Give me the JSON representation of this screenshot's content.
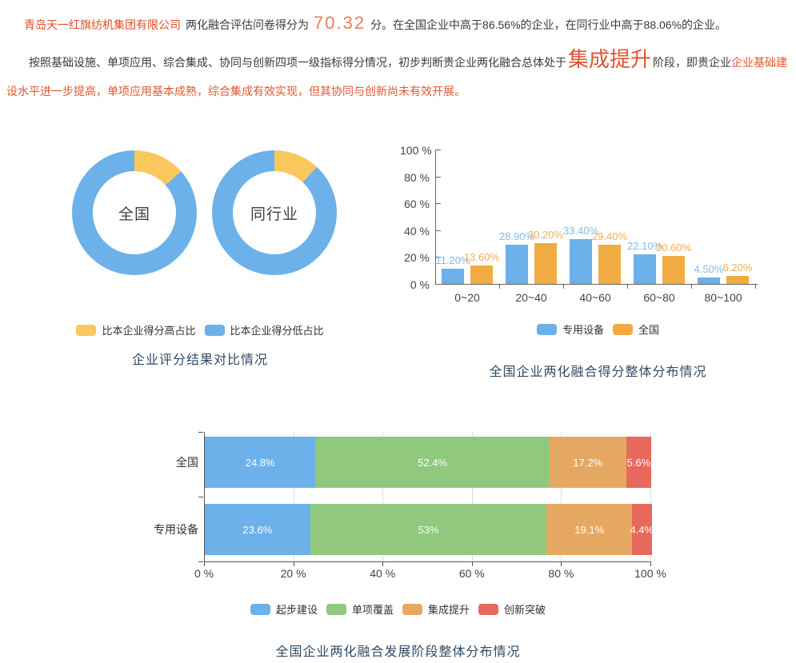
{
  "colors": {
    "blue": "#6cb1e9",
    "yellow": "#f9c75b",
    "orange": "#f0ac43",
    "green": "#90c87d",
    "sandy": "#e5a862",
    "red": "#e7695c",
    "title_navy": "#2f4a63",
    "axis": "#666666",
    "grid": "#dddddd"
  },
  "header": {
    "company": "青岛天一红旗纺机集团有限公司",
    "score_prefix": "两化融合评估问卷得分为",
    "score": "70.32",
    "score_suffix": "分。在全国企业中高于86.56%的企业，在同行业中高于88.06%的企业。",
    "assessment_black_1": "按照基础设施、单项应用、综合集成、协同与创新四项一级指标得分情况，初步判断贵企业两化融合总体处于",
    "stage_highlight": "集成提升",
    "assessment_black_2": "阶段，即贵企业",
    "assessment_red": "企业基础建设水平进一步提高，单项应用基本成熟，综合集成有效实现，但其协同与创新尚未有效开展。"
  },
  "chart_data": [
    {
      "type": "pie",
      "variant": "double-donut",
      "title": "企业评分结果对比情况",
      "legend": [
        {
          "label": "比本企业得分高占比",
          "color": "#f9c75b"
        },
        {
          "label": "比本企业得分低占比",
          "color": "#6cb1e9"
        }
      ],
      "donuts": [
        {
          "label": "全国",
          "slices": [
            {
              "name": "比本企业得分高占比",
              "value": 13.44,
              "color": "#f9c75b"
            },
            {
              "name": "比本企业得分低占比",
              "value": 86.56,
              "color": "#6cb1e9"
            }
          ]
        },
        {
          "label": "同行业",
          "slices": [
            {
              "name": "比本企业得分高占比",
              "value": 11.94,
              "color": "#f9c75b"
            },
            {
              "name": "比本企业得分低占比",
              "value": 88.06,
              "color": "#6cb1e9"
            }
          ]
        }
      ]
    },
    {
      "type": "bar",
      "title": "全国企业两化融合得分整体分布情况",
      "categories": [
        "0~20",
        "20~40",
        "40~60",
        "60~80",
        "80~100"
      ],
      "series": [
        {
          "name": "专用设备",
          "color": "#6cb1e9",
          "label_color": "#86b9e8",
          "values": [
            11.2,
            28.9,
            33.4,
            22.1,
            4.5
          ],
          "labels": [
            "11.20%",
            "28.90%",
            "33.40%",
            "22.10%",
            "4.50%"
          ]
        },
        {
          "name": "全国",
          "color": "#f0ac43",
          "label_color": "#f0ad52",
          "values": [
            13.6,
            30.2,
            29.4,
            20.6,
            6.2
          ],
          "labels": [
            "13.60%",
            "30.20%",
            "29.40%",
            "20.60%",
            "6.20%"
          ]
        }
      ],
      "ylim": [
        0,
        100
      ],
      "ytick_values": [
        0,
        20,
        40,
        60,
        80,
        100
      ],
      "ytick_labels": [
        "0 %",
        "20 %",
        "40 %",
        "60 %",
        "80 %",
        "100 %"
      ],
      "grid": false,
      "legend_position": "bottom"
    },
    {
      "type": "bar",
      "variant": "horizontal-stacked",
      "title": "全国企业两化融合发展阶段整体分布情况",
      "categories": [
        "全国",
        "专用设备"
      ],
      "series": [
        {
          "name": "起步建设",
          "color": "#6cb1e9",
          "values": [
            24.8,
            23.6
          ]
        },
        {
          "name": "单项覆盖",
          "color": "#90c87d",
          "values": [
            52.4,
            53
          ]
        },
        {
          "name": "集成提升",
          "color": "#e5a862",
          "values": [
            17.2,
            19.1
          ]
        },
        {
          "name": "创新突破",
          "color": "#e7695c",
          "values": [
            5.6,
            4.4
          ]
        }
      ],
      "segment_labels": [
        [
          "24.8%",
          "52.4%",
          "17.2%",
          "5.6%"
        ],
        [
          "23.6%",
          "53%",
          "19.1%",
          "4.4%"
        ]
      ],
      "xlim": [
        0,
        100
      ],
      "xtick_values": [
        0,
        20,
        40,
        60,
        80,
        100
      ],
      "xtick_labels": [
        "0 %",
        "20 %",
        "40 %",
        "60 %",
        "80 %",
        "100 %"
      ],
      "grid": true,
      "legend_position": "bottom"
    }
  ]
}
